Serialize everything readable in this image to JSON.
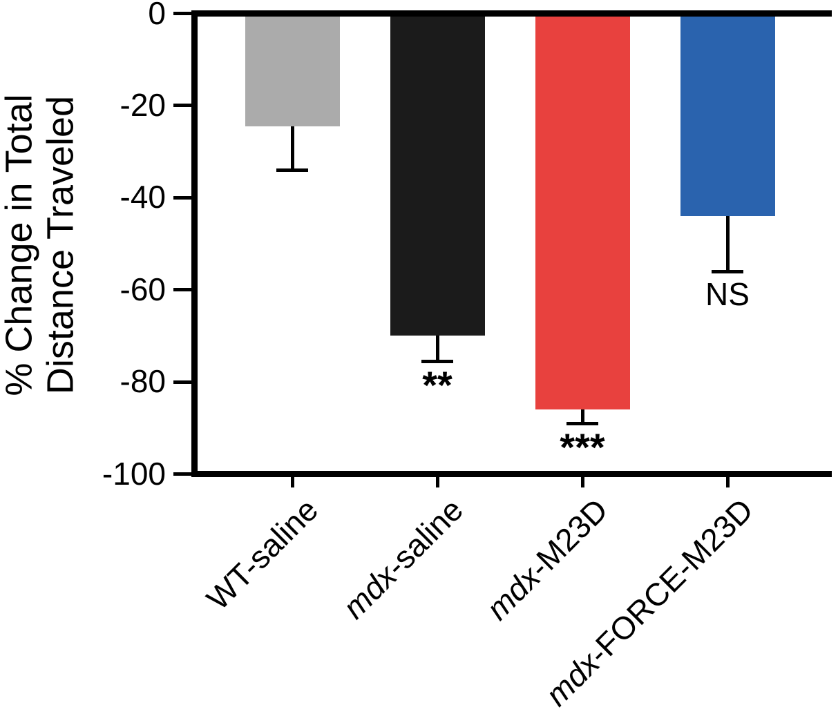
{
  "chart_data": {
    "type": "bar",
    "title": "",
    "xlabel": "",
    "ylabel": "% Change in Total Distance Traveled",
    "ylabel_lines": [
      "% Change in Total",
      "Distance Traveled"
    ],
    "ylim": [
      -100,
      0
    ],
    "yticks": [
      0,
      -20,
      -40,
      -60,
      -80,
      -100
    ],
    "grid": false,
    "legend": null,
    "error_direction": "down",
    "categories": [
      {
        "label": "WT-saline",
        "parts": [
          {
            "text": "WT-saline",
            "italic": false
          }
        ]
      },
      {
        "label": "mdx-saline",
        "parts": [
          {
            "text": "mdx",
            "italic": true
          },
          {
            "text": "-saline",
            "italic": false
          }
        ]
      },
      {
        "label": "mdx-M23D",
        "parts": [
          {
            "text": "mdx",
            "italic": true
          },
          {
            "text": "-M23D",
            "italic": false
          }
        ]
      },
      {
        "label": "mdx-FORCE-M23D",
        "parts": [
          {
            "text": "mdx",
            "italic": true
          },
          {
            "text": "-FORCE-M23D",
            "italic": false
          }
        ]
      }
    ],
    "values": [
      -24.5,
      -70,
      -86,
      -44
    ],
    "errors": [
      9.5,
      5.5,
      3,
      12
    ],
    "significance": [
      "",
      "**",
      "***",
      "NS"
    ],
    "colors": [
      "#ABABAB",
      "#1B1B1B",
      "#E8413E",
      "#2A63AE"
    ],
    "axis_color": "#000000"
  }
}
